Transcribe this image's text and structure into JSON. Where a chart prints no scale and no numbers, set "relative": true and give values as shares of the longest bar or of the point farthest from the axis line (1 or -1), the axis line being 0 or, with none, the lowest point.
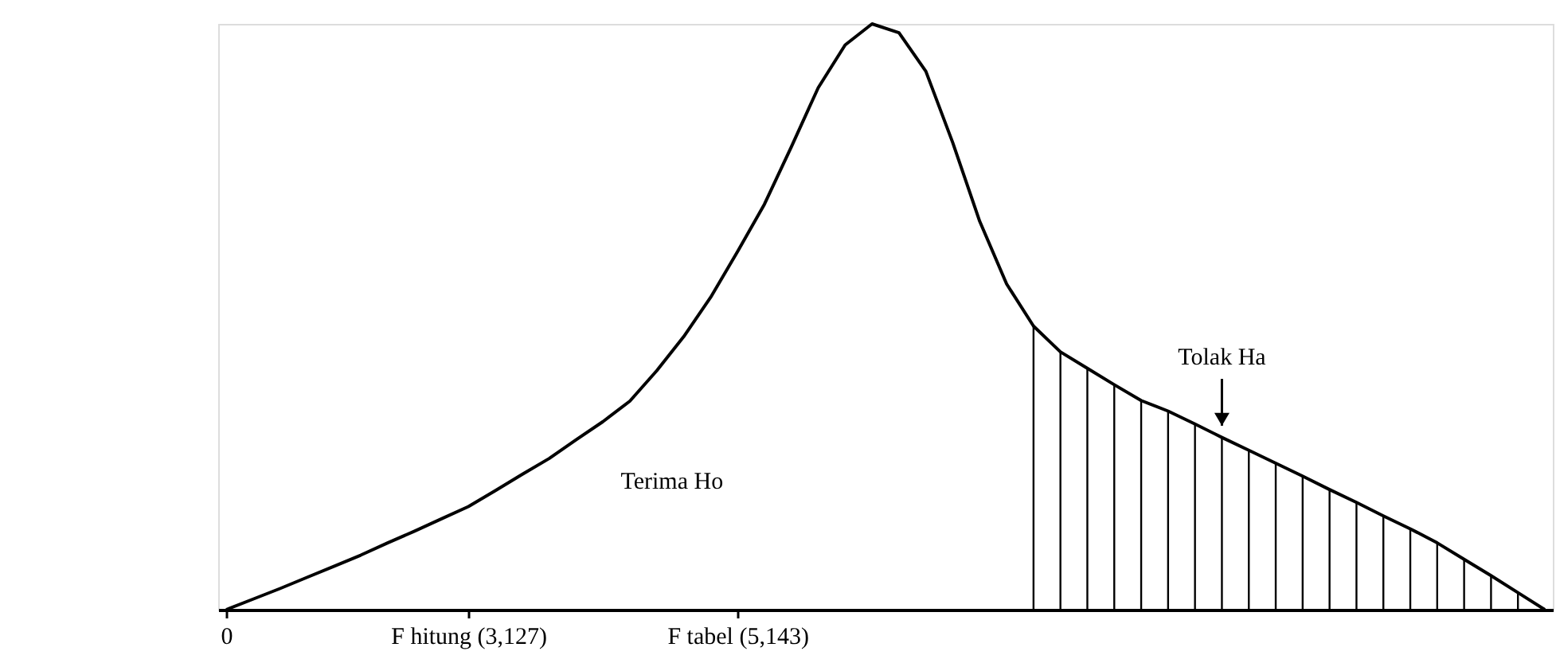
{
  "chart_data": {
    "type": "line",
    "relative": true,
    "categories": [
      "0",
      null,
      null,
      null,
      null,
      null,
      null,
      null,
      null,
      "F hitung (3,127)",
      null,
      null,
      null,
      null,
      null,
      null,
      null,
      null,
      null,
      "F tabel (5,143)",
      null,
      null,
      null,
      null,
      null,
      null,
      null,
      null,
      null,
      null,
      null,
      null,
      null,
      null,
      null,
      null,
      null,
      null,
      null,
      null,
      null,
      null,
      null,
      null,
      null,
      null,
      null,
      null,
      null,
      null
    ],
    "series": [
      {
        "color": "#000000",
        "values": [
          0,
          0.018,
          0.036,
          0.055,
          0.074,
          0.093,
          0.114,
          0.134,
          0.155,
          0.176,
          0.203,
          0.231,
          0.258,
          0.29,
          0.321,
          0.356,
          0.408,
          0.466,
          0.533,
          0.611,
          0.692,
          0.79,
          0.891,
          0.964,
          1,
          0.985,
          0.919,
          0.797,
          0.663,
          0.556,
          0.484,
          0.44,
          0.412,
          0.384,
          0.357,
          0.339,
          0.317,
          0.294,
          0.272,
          0.25,
          0.228,
          0.205,
          0.183,
          0.16,
          0.138,
          0.114,
          0.086,
          0.058,
          0.029,
          0
        ]
      },
      {
        "type": "bar",
        "name": "Tolak Ha",
        "color": "#000000",
        "values": [
          null,
          null,
          null,
          null,
          null,
          null,
          null,
          null,
          null,
          null,
          null,
          null,
          null,
          null,
          null,
          null,
          null,
          null,
          null,
          null,
          null,
          null,
          null,
          null,
          null,
          null,
          null,
          null,
          null,
          null,
          0.484,
          0.44,
          0.412,
          0.384,
          0.357,
          0.339,
          0.317,
          0.294,
          0.272,
          0.25,
          0.228,
          0.205,
          0.183,
          0.16,
          0.138,
          0.114,
          0.086,
          0.058,
          0.029,
          null
        ]
      }
    ],
    "annotations": [
      "Terima Ho"
    ],
    "grid": false,
    "legend": false,
    "marker": "none",
    "line_style": "solid"
  }
}
